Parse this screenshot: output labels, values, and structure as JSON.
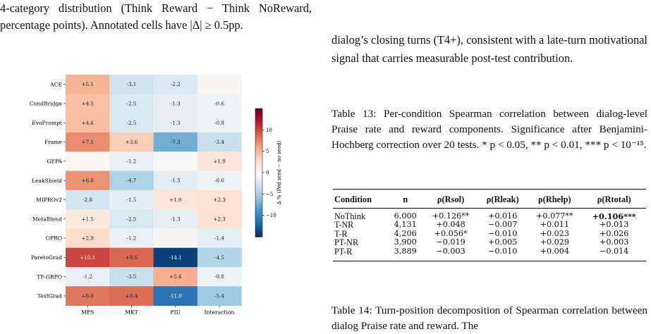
{
  "left_caption": "4-category distribution (Think Reward − Think NoReward, percentage points). Annotated cells have |Δ| ≥ 0.5pp.",
  "right_paragraph": "dialog’s closing turns (T4+), consistent with a late-turn motivational signal that carries measurable post-test contribution.",
  "table13": {
    "caption": "Table 13: Per-condition Spearman correlation between dialog-level Praise rate and reward components. Significance after Benjamini-Hochberg correction over 20 tests. * p < 0.05, ** p < 0.01, *** p < 10⁻¹⁵.",
    "headers": [
      "Condition",
      "n",
      "ρ(Rsol)",
      "ρ(Rleak)",
      "ρ(Rhelp)",
      "ρ(Rtotal)"
    ],
    "rows": [
      [
        "NoThink",
        "6,000",
        "+0.126**",
        "+0.016",
        "+0.077**",
        "+0.106***"
      ],
      [
        "T-NR",
        "4,131",
        "+0.048",
        "−0.007",
        "+0.011",
        "+0.013"
      ],
      [
        "T-R",
        "4,206",
        "+0.056*",
        "−0.010",
        "+0.023",
        "+0.026"
      ],
      [
        "PT-NR",
        "3,900",
        "−0.019",
        "+0.005",
        "+0.029",
        "+0.003"
      ],
      [
        "PT-R",
        "3,889",
        "−0.003",
        "−0.010",
        "+0.004",
        "−0.014"
      ]
    ]
  },
  "table14_caption": "Table 14: Turn-position decomposition of Spearman correlation between dialog Praise rate and reward. The",
  "chart_data": {
    "type": "heatmap",
    "title": "",
    "categories": [
      "MPS",
      "MKT",
      "PIU",
      "Interaction"
    ],
    "rows": [
      "ACE",
      "CondBridge",
      "EvoPrompt",
      "Frame",
      "GEPA",
      "LeakShield",
      "MIPROv2",
      "MetaBlend",
      "OPRO",
      "ParetoGrad",
      "TF-GRPO",
      "TextGrad"
    ],
    "values": [
      [
        5.1,
        -3.1,
        -2.2,
        0.2
      ],
      [
        4.5,
        -2.5,
        -1.3,
        -0.6
      ],
      [
        4.6,
        -2.5,
        -1.3,
        -0.8
      ],
      [
        7.1,
        3.6,
        -7.3,
        -3.4
      ],
      [
        0.1,
        -1.2,
        0.0,
        1.9
      ],
      [
        6.8,
        -4.7,
        -1.5,
        -0.6
      ],
      [
        -2.8,
        -1.5,
        1.9,
        2.3
      ],
      [
        1.5,
        -2.5,
        -1.3,
        2.3
      ],
      [
        2.9,
        -1.2,
        0.2,
        -1.4
      ],
      [
        10.1,
        8.6,
        -14.1,
        -4.5
      ],
      [
        -1.2,
        -3.5,
        5.4,
        -0.8
      ],
      [
        8.0,
        8.4,
        -11.0,
        -5.4
      ]
    ],
    "annotation_threshold": 0.5,
    "colorbar": {
      "label": "Δ % (Ped seed − no seed)",
      "ticks": [
        -10,
        -5,
        0,
        5,
        10
      ],
      "range": [
        -15,
        15
      ],
      "colormap": "diverging blue-white-red"
    }
  }
}
